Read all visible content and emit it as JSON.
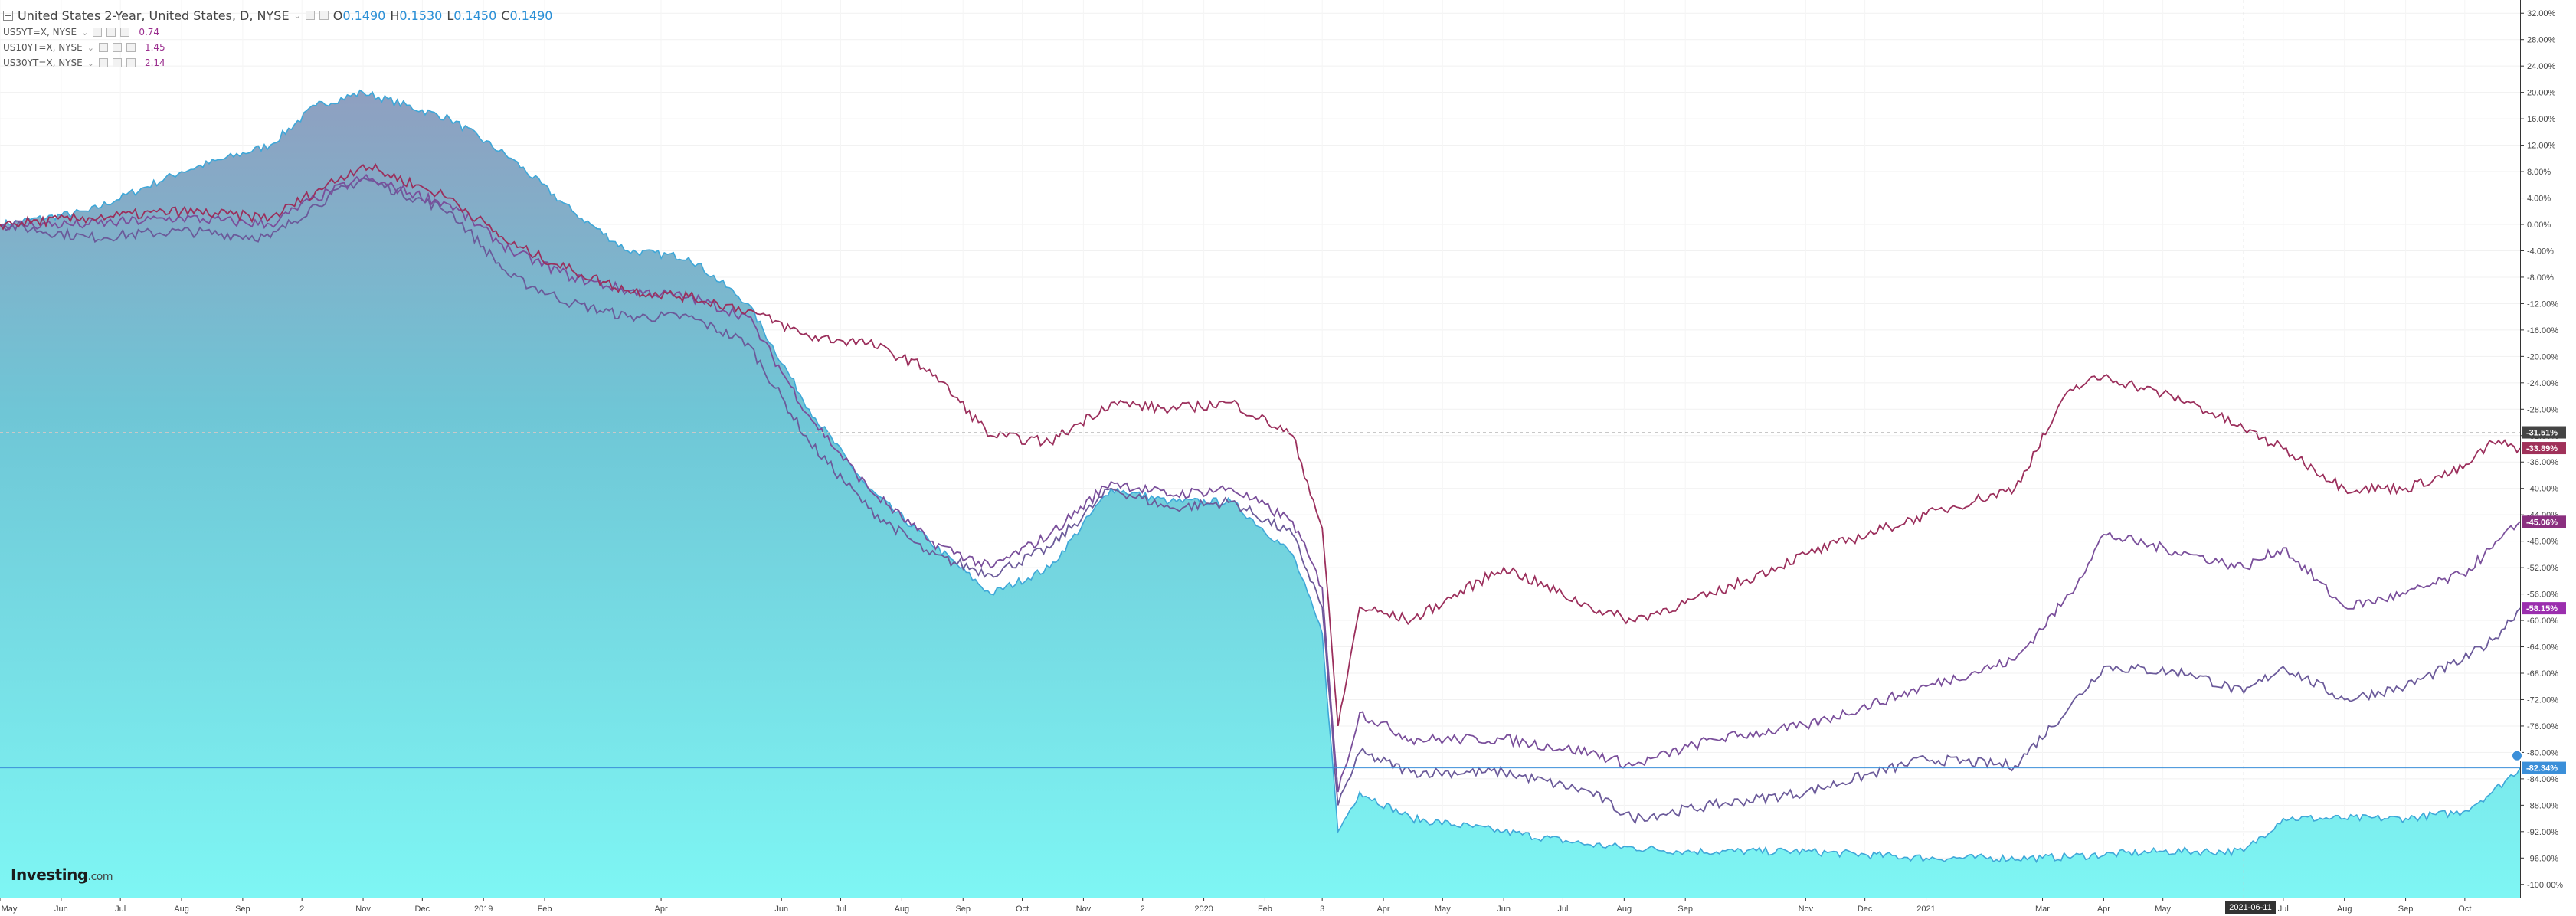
{
  "legend": {
    "main": {
      "name": "United States 2-Year, United States, D, NYSE",
      "o_label": "O",
      "o_value": "0.1490",
      "h_label": "H",
      "h_value": "0.1530",
      "l_label": "L",
      "l_value": "0.1450",
      "c_label": "C",
      "c_value": "0.1490"
    },
    "comparisons": [
      {
        "name": "US5YT=X, NYSE",
        "value": "0.74"
      },
      {
        "name": "US10YT=X, NYSE",
        "value": "1.45"
      },
      {
        "name": "US30YT=X, NYSE",
        "value": "2.14"
      }
    ]
  },
  "logo": {
    "text": "Investing",
    "suffix": ".com"
  },
  "crosshair": {
    "date_label": "2021-06-11",
    "value_label": "-31.51%"
  },
  "colors": {
    "area_top": "#8f9fc0",
    "area_mid": "#6fc6d6",
    "area_bottom": "#7ef6f4",
    "area_line": "#3ea7d8",
    "us5y": "#6b5a9a",
    "us10y": "#7a4f9b",
    "us30y": "#9b2f5c",
    "tag_30y": "#a0325a",
    "tag_10y": "#8a2f7f",
    "tag_5y": "#9b2fae",
    "tag_2y": "#3b8fd9"
  },
  "chart_data": {
    "type": "line",
    "y_unit": "%",
    "ylim": [
      -102,
      34
    ],
    "y_ticks": [
      "32.00%",
      "28.00%",
      "24.00%",
      "20.00%",
      "16.00%",
      "12.00%",
      "8.00%",
      "4.00%",
      "0.00%",
      "-4.00%",
      "-8.00%",
      "-12.00%",
      "-16.00%",
      "-20.00%",
      "-24.00%",
      "-28.00%",
      "-32.00%",
      "-36.00%",
      "-40.00%",
      "-44.00%",
      "-48.00%",
      "-52.00%",
      "-56.00%",
      "-60.00%",
      "-64.00%",
      "-68.00%",
      "-72.00%",
      "-76.00%",
      "-80.00%",
      "-84.00%",
      "-88.00%",
      "-92.00%",
      "-96.00%",
      "-100.00%"
    ],
    "x_ticks": [
      "May",
      "Jun",
      "Jul",
      "Aug",
      "Sep",
      "2",
      "Nov",
      "Dec",
      "2019",
      "Feb",
      "Apr",
      "Jun",
      "Jul",
      "Aug",
      "Sep",
      "Oct",
      "Nov",
      "2",
      "2020",
      "Feb",
      "3",
      "Apr",
      "May",
      "Jun",
      "Jul",
      "Aug",
      "Sep",
      "Nov",
      "Dec",
      "2021",
      "Mar",
      "Apr",
      "May",
      "Jul",
      "Aug",
      "Sep",
      "Oct"
    ],
    "x_range": [
      "2018-05-01",
      "2021-10-29"
    ],
    "last_values": {
      "US30YT=X": "-33.89%",
      "US10YT=X": "-45.06%",
      "US5YT=X": "-58.15%",
      "US2YT=X": "-82.34%"
    },
    "series": [
      {
        "name": "United States 2-Year",
        "style": "area",
        "x": [
          "2018-05-01",
          "2018-06-15",
          "2018-08-01",
          "2018-09-15",
          "2018-10-08",
          "2018-11-01",
          "2018-12-15",
          "2019-01-15",
          "2019-02-15",
          "2019-03-15",
          "2019-04-15",
          "2019-05-15",
          "2019-06-15",
          "2019-07-15",
          "2019-08-15",
          "2019-09-15",
          "2019-10-15",
          "2019-11-15",
          "2019-12-15",
          "2020-01-15",
          "2020-02-15",
          "2020-03-01",
          "2020-03-09",
          "2020-03-20",
          "2020-04-15",
          "2020-06-01",
          "2020-07-15",
          "2020-09-01",
          "2020-11-01",
          "2021-01-01",
          "2021-03-01",
          "2021-05-01",
          "2021-06-11",
          "2021-07-01",
          "2021-08-01",
          "2021-09-01",
          "2021-09-30",
          "2021-10-15",
          "2021-10-29"
        ],
        "y": [
          0,
          2,
          8,
          12,
          18,
          20,
          16,
          10,
          2,
          -4,
          -5,
          -12,
          -28,
          -40,
          -48,
          -56,
          -52,
          -40,
          -42,
          -42,
          -50,
          -62,
          -92,
          -86,
          -90,
          -92,
          -94,
          -95,
          -95,
          -96,
          -96,
          -95,
          -95,
          -90,
          -90,
          -90,
          -89,
          -86,
          -82.34
        ]
      },
      {
        "name": "US5YT=X",
        "style": "line",
        "x": [
          "2018-05-01",
          "2018-06-15",
          "2018-08-01",
          "2018-09-15",
          "2018-10-08",
          "2018-11-01",
          "2018-12-15",
          "2019-01-15",
          "2019-02-15",
          "2019-03-15",
          "2019-04-15",
          "2019-05-15",
          "2019-06-15",
          "2019-07-15",
          "2019-08-15",
          "2019-09-15",
          "2019-10-15",
          "2019-11-15",
          "2019-12-15",
          "2020-01-15",
          "2020-02-15",
          "2020-03-01",
          "2020-03-09",
          "2020-03-20",
          "2020-04-15",
          "2020-06-01",
          "2020-07-15",
          "2020-08-05",
          "2020-09-15",
          "2020-11-01",
          "2021-01-01",
          "2021-02-15",
          "2021-03-15",
          "2021-04-01",
          "2021-05-15",
          "2021-06-11",
          "2021-07-01",
          "2021-08-01",
          "2021-09-01",
          "2021-09-30",
          "2021-10-15",
          "2021-10-29"
        ],
        "y": [
          0,
          -2,
          -1,
          -2,
          3,
          7,
          2,
          -8,
          -12,
          -14,
          -14,
          -18,
          -33,
          -43,
          -50,
          -53,
          -49,
          -40,
          -43,
          -42,
          -47,
          -58,
          -88,
          -80,
          -83,
          -83,
          -86,
          -90,
          -88,
          -86,
          -81,
          -82,
          -73,
          -67,
          -68,
          -71,
          -67,
          -72,
          -70,
          -66,
          -63,
          -58.15
        ]
      },
      {
        "name": "US10YT=X",
        "style": "line",
        "x": [
          "2018-05-01",
          "2018-06-15",
          "2018-08-01",
          "2018-09-15",
          "2018-10-08",
          "2018-11-01",
          "2018-12-15",
          "2019-01-15",
          "2019-02-15",
          "2019-03-15",
          "2019-04-15",
          "2019-05-15",
          "2019-06-15",
          "2019-07-15",
          "2019-08-15",
          "2019-09-15",
          "2019-10-15",
          "2019-11-15",
          "2019-12-15",
          "2020-01-15",
          "2020-02-15",
          "2020-03-01",
          "2020-03-09",
          "2020-03-20",
          "2020-04-15",
          "2020-06-01",
          "2020-07-15",
          "2020-08-05",
          "2020-09-15",
          "2020-11-01",
          "2021-01-01",
          "2021-02-15",
          "2021-03-15",
          "2021-04-01",
          "2021-05-15",
          "2021-06-11",
          "2021-07-01",
          "2021-08-01",
          "2021-09-01",
          "2021-09-30",
          "2021-10-15",
          "2021-10-29"
        ],
        "y": [
          0,
          0,
          1,
          0,
          4,
          7,
          3,
          -4,
          -8,
          -10,
          -11,
          -14,
          -29,
          -40,
          -48,
          -52,
          -47,
          -39,
          -41,
          -40,
          -45,
          -55,
          -86,
          -74,
          -78,
          -78,
          -80,
          -82,
          -78,
          -76,
          -70,
          -66,
          -56,
          -47,
          -50,
          -52,
          -49,
          -58,
          -56,
          -53,
          -49,
          -45.06
        ]
      },
      {
        "name": "US30YT=X",
        "style": "line",
        "x": [
          "2018-05-01",
          "2018-06-15",
          "2018-08-01",
          "2018-09-15",
          "2018-10-08",
          "2018-11-01",
          "2018-12-15",
          "2019-01-15",
          "2019-02-15",
          "2019-03-15",
          "2019-04-15",
          "2019-05-15",
          "2019-06-15",
          "2019-07-15",
          "2019-08-15",
          "2019-09-15",
          "2019-10-15",
          "2019-11-15",
          "2019-12-15",
          "2020-01-15",
          "2020-02-15",
          "2020-03-01",
          "2020-03-09",
          "2020-03-20",
          "2020-04-15",
          "2020-06-01",
          "2020-07-15",
          "2020-08-05",
          "2020-09-15",
          "2020-11-01",
          "2021-01-01",
          "2021-02-15",
          "2021-03-15",
          "2021-04-01",
          "2021-05-15",
          "2021-06-11",
          "2021-07-01",
          "2021-08-01",
          "2021-09-01",
          "2021-09-30",
          "2021-10-15",
          "2021-10-29"
        ],
        "y": [
          0,
          1,
          2,
          1,
          5,
          9,
          4,
          -3,
          -7,
          -10,
          -11,
          -13,
          -17,
          -18,
          -22,
          -32,
          -33,
          -27,
          -28,
          -27,
          -32,
          -46,
          -76,
          -58,
          -60,
          -52,
          -58,
          -60,
          -56,
          -50,
          -44,
          -40,
          -25,
          -23,
          -27,
          -31,
          -34,
          -40,
          -40,
          -37,
          -33,
          -33.89
        ]
      }
    ]
  }
}
